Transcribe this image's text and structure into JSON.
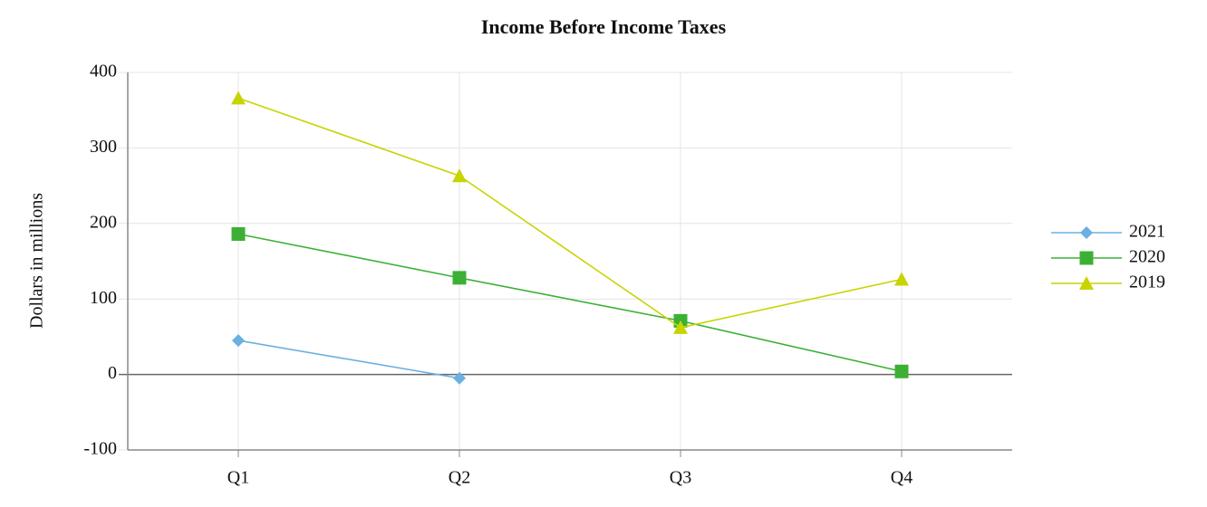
{
  "chart_data": {
    "type": "line",
    "title": "Income Before Income Taxes",
    "y_label": "Dollars in millions",
    "categories": [
      "Q1",
      "Q2",
      "Q3",
      "Q4"
    ],
    "series": [
      {
        "name": "2021",
        "color": "#6ab0e0",
        "marker": "diamond",
        "values": [
          45,
          -5,
          null,
          null
        ]
      },
      {
        "name": "2020",
        "color": "#3cb034",
        "marker": "square",
        "values": [
          186,
          128,
          71,
          4
        ]
      },
      {
        "name": "2019",
        "color": "#c8d400",
        "marker": "triangle",
        "values": [
          366,
          263,
          62,
          126
        ]
      }
    ],
    "ylim": [
      -100,
      400
    ],
    "yticks": [
      -100,
      0,
      100,
      200,
      300,
      400
    ],
    "grid": true,
    "legend": "right"
  }
}
